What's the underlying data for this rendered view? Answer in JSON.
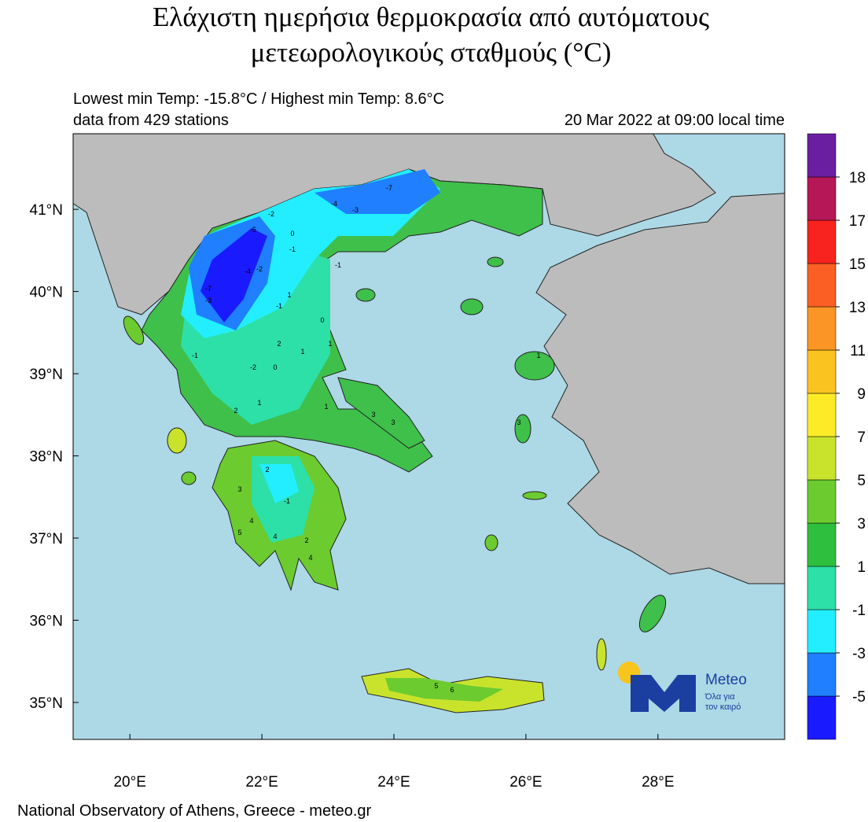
{
  "header": {
    "title_lines": [
      "Ελάχιστη ημερήσια θερμοκρασία από αυτόματους",
      "μετεωρολογικούς σταθμούς (°C)"
    ],
    "info_left": [
      "Lowest min Temp: -15.8°C / Highest min Temp: 8.6°C",
      "data from 429 stations"
    ],
    "info_right": "20 Mar 2022 at 09:00 local time"
  },
  "map": {
    "lon_range": [
      19.14,
      29.92
    ],
    "lat_range": [
      34.55,
      41.92
    ],
    "lon_ticks": [
      {
        "value": 20,
        "label": "20°E"
      },
      {
        "value": 22,
        "label": "22°E"
      },
      {
        "value": 24,
        "label": "24°E"
      },
      {
        "value": 26,
        "label": "26°E"
      },
      {
        "value": 28,
        "label": "28°E"
      }
    ],
    "lat_ticks": [
      {
        "value": 41,
        "label": "41°N"
      },
      {
        "value": 40,
        "label": "40°N"
      },
      {
        "value": 39,
        "label": "39°N"
      },
      {
        "value": 38,
        "label": "38°N"
      },
      {
        "value": 37,
        "label": "37°N"
      },
      {
        "value": 36,
        "label": "36°N"
      },
      {
        "value": 35,
        "label": "35°N"
      }
    ],
    "station_labels": [
      -2,
      -4,
      -5,
      -3,
      -7,
      -1,
      -2,
      0,
      1,
      -3,
      -7,
      -4,
      -1,
      -1,
      2,
      -1,
      1,
      0,
      -2,
      1,
      3,
      2,
      2,
      4,
      3,
      5,
      4,
      1,
      0,
      3,
      1,
      5,
      6,
      2,
      -1,
      4,
      1,
      3
    ]
  },
  "colorbar": {
    "levels": [
      -5,
      -3,
      -1,
      1,
      3,
      5,
      7,
      9,
      11,
      13,
      15,
      17,
      18
    ],
    "colors": [
      "#1a1aff",
      "#1f7fff",
      "#22eeff",
      "#2de0a8",
      "#2fbf3f",
      "#6ccb2f",
      "#c9e32c",
      "#fdeb27",
      "#fbc31f",
      "#fb9626",
      "#fb5f23",
      "#f8221f",
      "#b61756",
      "#6a1fa0"
    ]
  },
  "logo": {
    "name": "Meteo",
    "tagline": [
      "Όλα για",
      "τον καιρό"
    ]
  },
  "footer": "National Observatory of Athens, Greece - meteo.gr"
}
